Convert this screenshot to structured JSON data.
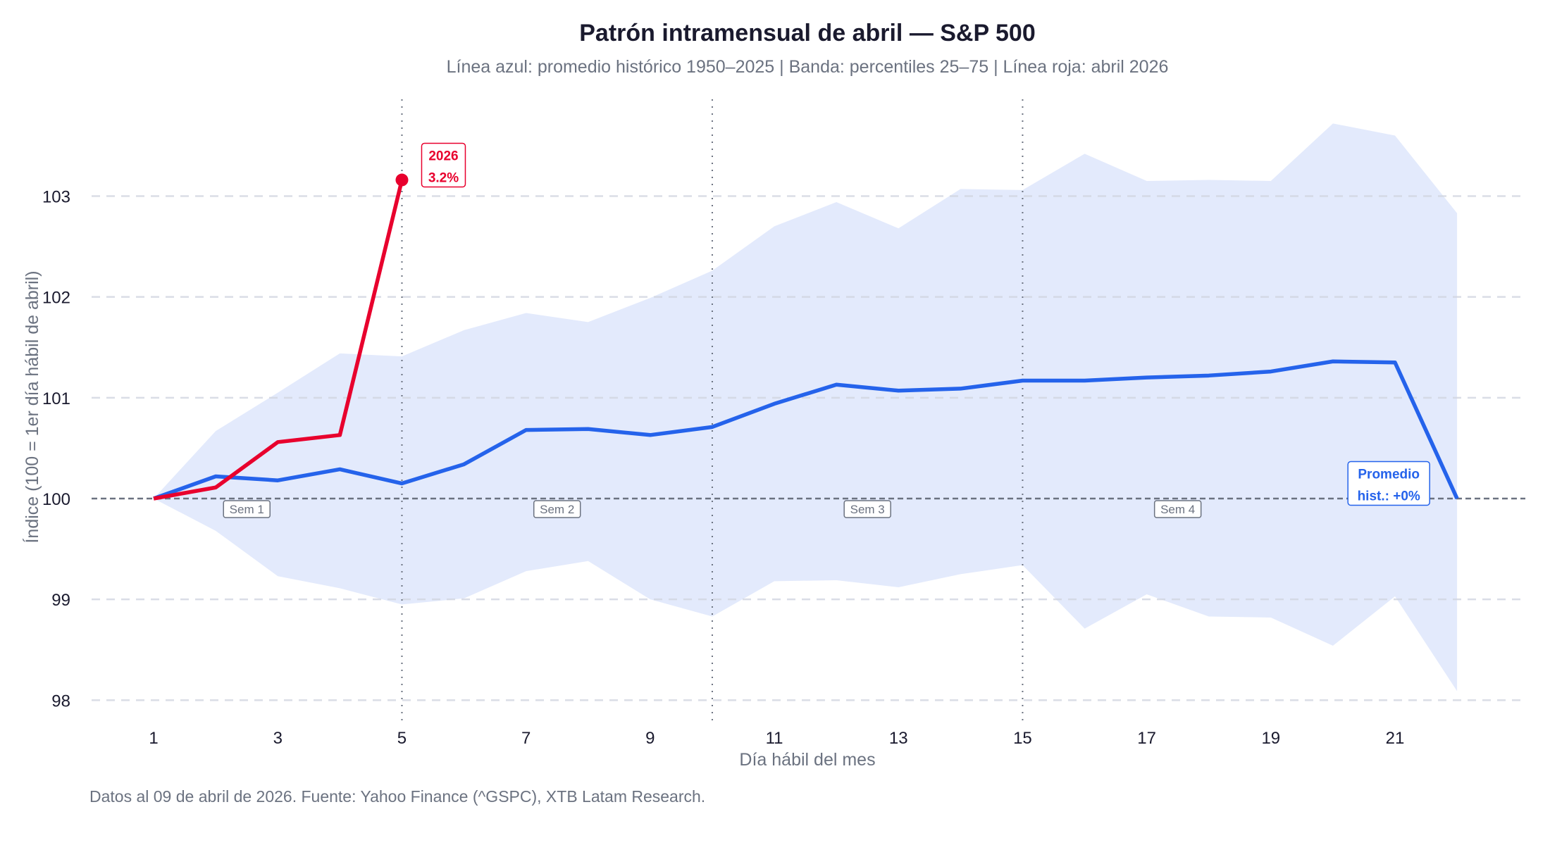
{
  "chart_data": {
    "type": "line",
    "title": "Patrón intramensual de abril — S&P 500",
    "subtitle": "Línea azul: promedio histórico 1950–2025 | Banda: percentiles 25–75 | Línea roja: abril 2026",
    "xlabel": "Día hábil del mes",
    "ylabel": "Índice (100 = 1er día hábil de abril)",
    "footer": "Datos al 09 de abril de 2026. Fuente: Yahoo Finance (^GSPC), XTB Latam Research.",
    "xlim": [
      0,
      23.1
    ],
    "ylim": [
      97.8,
      103.96
    ],
    "x_ticks": [
      1,
      3,
      5,
      7,
      9,
      11,
      13,
      15,
      17,
      19,
      21
    ],
    "y_ticks": [
      98,
      99,
      100,
      101,
      102,
      103
    ],
    "grid": "horizontal dashed",
    "colors": {
      "mean": "#2563eb",
      "band": "#e3eafc",
      "current": "#e8002d",
      "ref": "#6b7280"
    },
    "x": [
      1,
      2,
      3,
      4,
      5,
      6,
      7,
      8,
      9,
      10,
      11,
      12,
      13,
      14,
      15,
      16,
      17,
      18,
      19,
      20,
      21,
      22
    ],
    "mean": [
      100,
      100.22,
      100.18,
      100.29,
      100.15,
      100.34,
      100.68,
      100.69,
      100.63,
      100.71,
      100.94,
      101.13,
      101.07,
      101.09,
      101.17,
      101.17,
      101.2,
      101.22,
      101.26,
      101.36,
      101.35,
      100.0
    ],
    "p75": [
      100,
      100.67,
      101.05,
      101.44,
      101.41,
      101.67,
      101.84,
      101.75,
      101.99,
      102.26,
      102.7,
      102.94,
      102.68,
      103.07,
      103.06,
      103.42,
      103.15,
      103.16,
      103.15,
      103.72,
      103.6,
      102.83
    ],
    "p25": [
      100,
      99.68,
      99.23,
      99.11,
      98.95,
      99.01,
      99.28,
      99.38,
      99.0,
      98.83,
      99.18,
      99.19,
      99.12,
      99.25,
      99.34,
      98.71,
      99.05,
      98.83,
      98.82,
      98.54,
      99.03,
      98.09
    ],
    "current_x": [
      1,
      2,
      3,
      4,
      5
    ],
    "current": [
      100,
      100.11,
      100.56,
      100.63,
      103.16
    ],
    "reference_line": 100,
    "week_dividers": [
      5,
      10,
      15
    ],
    "week_labels": [
      {
        "label": "Sem 1",
        "x": 2.5
      },
      {
        "label": "Sem 2",
        "x": 7.5
      },
      {
        "label": "Sem 3",
        "x": 12.5
      },
      {
        "label": "Sem 4",
        "x": 17.5
      }
    ],
    "current_annotation": {
      "line1": "2026",
      "line2": "3.2%"
    },
    "mean_annotation": {
      "line1": "Promedio",
      "line2": "hist.: +0%"
    }
  }
}
